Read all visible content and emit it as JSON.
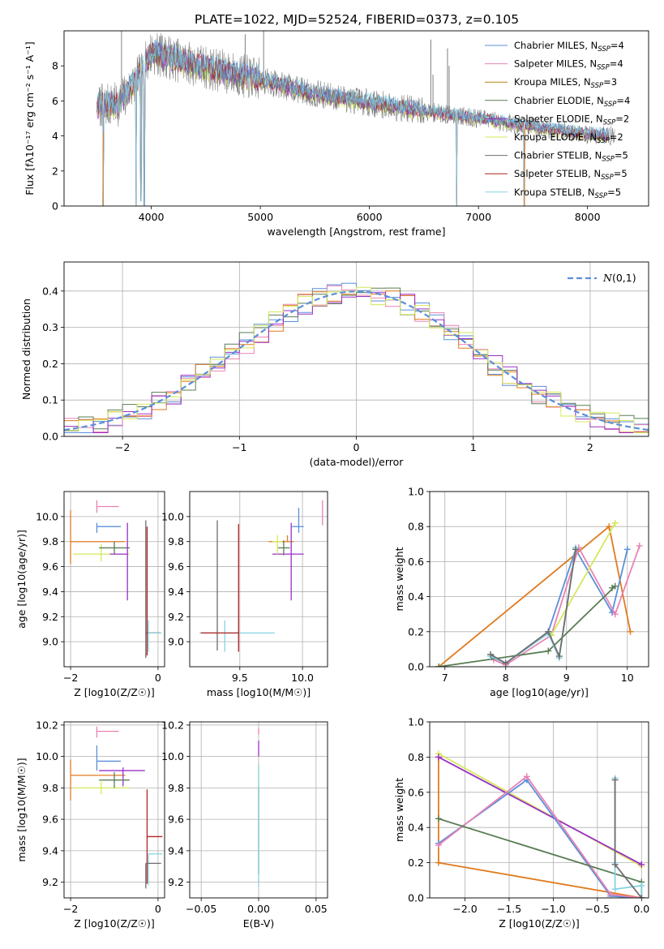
{
  "figure_title": "PLATE=1022, MJD=52524, FIBERID=0373, z=0.105",
  "colors": {
    "Chabrier MILES": "#5b8fd9",
    "Salpeter MILES": "#e882b4",
    "Kroupa MILES": "#b8860b",
    "Chabrier ELODIE": "#5a7d55",
    "Salpeter ELODIE": "#9b30c8",
    "Kroupa ELODIE": "#d4e85a",
    "Chabrier STELIB": "#6e6e6e",
    "Salpeter STELIB": "#b22222",
    "Kroupa STELIB": "#87d3e0",
    "Orange": "#e07b1f"
  },
  "chart_data": [
    {
      "id": "spectrum",
      "type": "line",
      "xlabel": "wavelength [Angstrom, rest frame]",
      "ylabel": "Flux [fλ10⁻¹⁷ erg cm⁻² s⁻¹ A⁻¹]",
      "xlim": [
        3200,
        8560
      ],
      "ylim": [
        0,
        10
      ],
      "xticks": [
        4000,
        5000,
        6000,
        7000,
        8000
      ],
      "yticks": [
        0,
        2,
        4,
        6,
        8
      ],
      "legend_position": "top-right",
      "legend": [
        {
          "name": "Chabrier MILES, N_SSP=4",
          "label_main": "Chabrier MILES, N",
          "sub": "SSP",
          "tail": "=4",
          "color_key": "Chabrier MILES"
        },
        {
          "name": "Salpeter MILES, N_SSP=4",
          "label_main": "Salpeter MILES, N",
          "sub": "SSP",
          "tail": "=4",
          "color_key": "Salpeter MILES"
        },
        {
          "name": "Kroupa MILES, N_SSP=3",
          "label_main": "Kroupa MILES, N",
          "sub": "SSP",
          "tail": "=3",
          "color_key": "Kroupa MILES"
        },
        {
          "name": "Chabrier ELODIE, N_SSP=4",
          "label_main": "Chabrier ELODIE, N",
          "sub": "SSP",
          "tail": "=4",
          "color_key": "Chabrier ELODIE"
        },
        {
          "name": "Salpeter ELODIE, N_SSP=2",
          "label_main": "Salpeter ELODIE, N",
          "sub": "SSP",
          "tail": "=2",
          "color_key": "Salpeter ELODIE"
        },
        {
          "name": "Kroupa ELODIE, N_SSP=2",
          "label_main": "Kroupa ELODIE, N",
          "sub": "SSP",
          "tail": "=2",
          "color_key": "Kroupa ELODIE"
        },
        {
          "name": "Chabrier STELIB, N_SSP=5",
          "label_main": "Chabrier STELIB, N",
          "sub": "SSP",
          "tail": "=5",
          "color_key": "Chabrier STELIB"
        },
        {
          "name": "Salpeter STELIB, N_SSP=5",
          "label_main": "Salpeter STELIB, N",
          "sub": "SSP",
          "tail": "=5",
          "color_key": "Salpeter STELIB"
        },
        {
          "name": "Kroupa STELIB, N_SSP=5",
          "label_main": "Kroupa STELIB, N",
          "sub": "SSP",
          "tail": "=5",
          "color_key": "Kroupa STELIB"
        }
      ],
      "continuum_knots": [
        [
          3500,
          5.7
        ],
        [
          3700,
          5.8
        ],
        [
          3900,
          7.5
        ],
        [
          4000,
          8.8
        ],
        [
          4200,
          8.4
        ],
        [
          4500,
          7.9
        ],
        [
          5000,
          7.2
        ],
        [
          5500,
          6.4
        ],
        [
          6000,
          5.9
        ],
        [
          6500,
          5.4
        ],
        [
          7000,
          5.0
        ],
        [
          7500,
          4.5
        ],
        [
          8000,
          4.1
        ],
        [
          8250,
          4.0
        ]
      ],
      "emission_spikes": [
        [
          3727,
          10
        ],
        [
          4861,
          9.8
        ],
        [
          5030,
          10
        ],
        [
          6563,
          9.5
        ],
        [
          6583,
          7.5
        ],
        [
          6716,
          9
        ],
        [
          6731,
          8
        ]
      ],
      "absorption_dips": [
        [
          3860,
          0
        ],
        [
          3905,
          0.3
        ],
        [
          3935,
          0
        ],
        [
          6800,
          0
        ],
        [
          7420,
          0
        ],
        [
          3560,
          0
        ]
      ]
    },
    {
      "id": "residuals",
      "type": "line",
      "xlabel": "(data-model)/error",
      "ylabel": "Normed distribution",
      "xlim": [
        -2.5,
        2.5
      ],
      "ylim": [
        0,
        0.48
      ],
      "xticks": [
        -2,
        -1,
        0,
        1,
        2
      ],
      "yticks": [
        0,
        0.1,
        0.2,
        0.3,
        0.4
      ],
      "legend_position": "top-right",
      "legend_label": "N(0,1)",
      "gaussian": {
        "mu": 0,
        "sigma": 1
      },
      "bins": 40
    },
    {
      "id": "age_vs_Z",
      "type": "scatter",
      "xlabel": "Z [log10(Z/Z☉)]",
      "ylabel": "age  [log10(age/yr)]",
      "xlim": [
        -2.15,
        0.15
      ],
      "ylim": [
        8.8,
        10.2
      ],
      "xticks": [
        -2,
        0
      ],
      "yticks": [
        9.0,
        9.2,
        9.4,
        9.6,
        9.8,
        10.0
      ],
      "points": [
        {
          "color_key": "Orange",
          "x": -2.0,
          "y": 9.8,
          "xerr": [
            0.0,
            1.25
          ],
          "yerr": [
            0.18,
            0.25
          ]
        },
        {
          "color_key": "Salpeter MILES",
          "x": -1.4,
          "y": 10.08,
          "xerr": [
            0.0,
            0.5
          ],
          "yerr": [
            0.05,
            0.05
          ]
        },
        {
          "color_key": "Chabrier MILES",
          "x": -1.4,
          "y": 9.92,
          "xerr": [
            0.0,
            0.55
          ],
          "yerr": [
            0.05,
            0.03
          ]
        },
        {
          "color_key": "Kroupa ELODIE",
          "x": -1.3,
          "y": 9.7,
          "xerr": [
            0.65,
            0.65
          ],
          "yerr": [
            0.06,
            0.08
          ]
        },
        {
          "color_key": "Chabrier ELODIE",
          "x": -1.0,
          "y": 9.75,
          "xerr": [
            0.35,
            0.35
          ],
          "yerr": [
            0.05,
            0.05
          ]
        },
        {
          "color_key": "Salpeter ELODIE",
          "x": -0.7,
          "y": 9.7,
          "xerr": [
            0.4,
            0.0
          ],
          "yerr": [
            0.37,
            0.25
          ]
        },
        {
          "color_key": "Chabrier STELIB",
          "x": -0.28,
          "y": 9.07,
          "xerr": [
            0.0,
            0.35
          ],
          "yerr": [
            0.2,
            0.9
          ]
        },
        {
          "color_key": "Salpeter STELIB",
          "x": -0.25,
          "y": 9.07,
          "xerr": [
            0.0,
            0.3
          ],
          "yerr": [
            0.18,
            0.85
          ]
        },
        {
          "color_key": "Kroupa STELIB",
          "x": -0.22,
          "y": 9.07,
          "xerr": [
            0.0,
            0.3
          ],
          "yerr": [
            0.15,
            0.1
          ]
        }
      ]
    },
    {
      "id": "age_vs_mass",
      "type": "scatter",
      "xlabel": "mass [log10(M/M☉)]",
      "ylabel": "",
      "xlim": [
        9.1,
        10.2
      ],
      "ylim": [
        8.8,
        10.2
      ],
      "xticks": [
        9.5,
        10.0
      ],
      "yticks": [
        9.0,
        9.2,
        9.4,
        9.6,
        9.8,
        10.0
      ],
      "points": [
        {
          "color_key": "Chabrier STELIB",
          "x": 9.32,
          "y": 9.07,
          "xerr": [
            0.14,
            0.0
          ],
          "yerr": [
            0.14,
            0.9
          ]
        },
        {
          "color_key": "Kroupa STELIB",
          "x": 9.38,
          "y": 9.07,
          "xerr": [
            0.2,
            0.4
          ],
          "yerr": [
            0.15,
            0.1
          ]
        },
        {
          "color_key": "Salpeter STELIB",
          "x": 9.49,
          "y": 9.07,
          "xerr": [
            0.3,
            0.0
          ],
          "yerr": [
            0.15,
            0.87
          ]
        },
        {
          "color_key": "Orange",
          "x": 9.88,
          "y": 9.8,
          "xerr": [
            0.15,
            0.05
          ],
          "yerr": [
            0.0,
            0.05
          ]
        },
        {
          "color_key": "Salpeter ELODIE",
          "x": 9.91,
          "y": 9.7,
          "xerr": [
            0.15,
            0.1
          ],
          "yerr": [
            0.37,
            0.25
          ]
        },
        {
          "color_key": "Chabrier ELODIE",
          "x": 9.85,
          "y": 9.75,
          "xerr": [
            0.05,
            0.05
          ],
          "yerr": [
            0.06,
            0.06
          ]
        },
        {
          "color_key": "Kroupa ELODIE",
          "x": 9.8,
          "y": 9.8,
          "xerr": [
            0.04,
            0.04
          ],
          "yerr": [
            0.1,
            0.05
          ]
        },
        {
          "color_key": "Chabrier MILES",
          "x": 9.97,
          "y": 9.92,
          "xerr": [
            0.06,
            0.04
          ],
          "yerr": [
            0.05,
            0.15
          ]
        },
        {
          "color_key": "Salpeter MILES",
          "x": 10.16,
          "y": 10.08,
          "xerr": [
            0.0,
            0.0
          ],
          "yerr": [
            0.15,
            0.05
          ]
        }
      ]
    },
    {
      "id": "weight_vs_age",
      "type": "line",
      "xlabel": "age  [log10(age/yr)]",
      "ylabel": "mass weight",
      "xlim": [
        6.75,
        10.35
      ],
      "ylim": [
        0,
        1.0
      ],
      "xticks": [
        7,
        8,
        9,
        10
      ],
      "yticks": [
        0,
        0.2,
        0.4,
        0.6,
        0.8,
        1.0
      ],
      "series": [
        {
          "color_key": "Orange",
          "x": [
            6.9,
            9.7,
            10.05
          ],
          "y": [
            0.0,
            0.8,
            0.2
          ]
        },
        {
          "color_key": "Chabrier MILES",
          "x": [
            7.8,
            8.0,
            8.7,
            9.15,
            9.75,
            10.0
          ],
          "y": [
            0.05,
            0.02,
            0.2,
            0.67,
            0.31,
            0.67
          ]
        },
        {
          "color_key": "Salpeter MILES",
          "x": [
            7.8,
            8.0,
            8.75,
            9.2,
            9.8,
            10.2
          ],
          "y": [
            0.04,
            0.01,
            0.18,
            0.68,
            0.3,
            0.69
          ]
        },
        {
          "color_key": "Kroupa ELODIE",
          "x": [
            8.75,
            9.8
          ],
          "y": [
            0.18,
            0.82
          ]
        },
        {
          "color_key": "Chabrier ELODIE",
          "x": [
            6.9,
            8.7,
            9.8,
            9.75
          ],
          "y": [
            0.0,
            0.09,
            0.46,
            0.45
          ]
        },
        {
          "color_key": "Kroupa STELIB",
          "x": [
            7.75,
            8.0,
            8.7,
            8.88,
            9.15
          ],
          "y": [
            0.06,
            0.02,
            0.19,
            0.05,
            0.68
          ]
        },
        {
          "color_key": "Chabrier STELIB",
          "x": [
            7.75,
            8.0,
            8.7,
            8.88,
            9.15
          ],
          "y": [
            0.07,
            0.02,
            0.2,
            0.06,
            0.67
          ]
        }
      ]
    },
    {
      "id": "mass_vs_Z",
      "type": "scatter",
      "xlabel": "Z [log10(Z/Z☉)]",
      "ylabel": "mass [log10(M/M☉)]",
      "xlim": [
        -2.15,
        0.15
      ],
      "ylim": [
        9.1,
        10.22
      ],
      "xticks": [
        -2,
        0
      ],
      "yticks": [
        9.2,
        9.4,
        9.6,
        9.8,
        10.0,
        10.2
      ],
      "points": [
        {
          "color_key": "Orange",
          "x": -2.0,
          "y": 9.88,
          "xerr": [
            0.0,
            1.25
          ],
          "yerr": [
            0.16,
            0.1
          ]
        },
        {
          "color_key": "Salpeter MILES",
          "x": -1.4,
          "y": 10.16,
          "xerr": [
            0.0,
            0.5
          ],
          "yerr": [
            0.04,
            0.03
          ]
        },
        {
          "color_key": "Chabrier MILES",
          "x": -1.4,
          "y": 9.97,
          "xerr": [
            0.0,
            0.55
          ],
          "yerr": [
            0.06,
            0.1
          ]
        },
        {
          "color_key": "Salpeter ELODIE",
          "x": -0.8,
          "y": 9.91,
          "xerr": [
            0.55,
            0.5
          ],
          "yerr": [
            0.1,
            0.02
          ]
        },
        {
          "color_key": "Kroupa ELODIE",
          "x": -1.3,
          "y": 9.8,
          "xerr": [
            0.65,
            0.65
          ],
          "yerr": [
            0.04,
            0.04
          ]
        },
        {
          "color_key": "Chabrier ELODIE",
          "x": -1.0,
          "y": 9.85,
          "xerr": [
            0.35,
            0.35
          ],
          "yerr": [
            0.05,
            0.05
          ]
        },
        {
          "color_key": "Salpeter STELIB",
          "x": -0.25,
          "y": 9.49,
          "xerr": [
            0.0,
            0.35
          ],
          "yerr": [
            0.3,
            0.3
          ]
        },
        {
          "color_key": "Kroupa STELIB",
          "x": -0.22,
          "y": 9.38,
          "xerr": [
            0.0,
            0.32
          ],
          "yerr": [
            0.2,
            0.0
          ]
        },
        {
          "color_key": "Chabrier STELIB",
          "x": -0.28,
          "y": 9.32,
          "xerr": [
            0.0,
            0.35
          ],
          "yerr": [
            0.16,
            0.0
          ]
        }
      ]
    },
    {
      "id": "mass_vs_EBV",
      "type": "scatter",
      "xlabel": "E(B-V)",
      "ylabel": "",
      "xlim": [
        -0.06,
        0.06
      ],
      "ylim": [
        9.1,
        10.22
      ],
      "xticks": [
        -0.05,
        0.0,
        0.05
      ],
      "xtick_labels": [
        "−0.05",
        "0.00",
        "0.05"
      ],
      "yticks": [
        9.2,
        9.4,
        9.6,
        9.8,
        10.0,
        10.2
      ],
      "points": [
        {
          "color_key": "Salpeter MILES",
          "x": 0.0,
          "y": 10.16,
          "yerr": [
            0.02,
            0.02
          ]
        },
        {
          "color_key": "Salpeter ELODIE",
          "x": 0.0,
          "y": 10.0,
          "yerr": [
            0.0,
            0.1
          ]
        },
        {
          "color_key": "Kroupa ELODIE",
          "x": 0.0,
          "y": 9.85,
          "yerr": [
            0.1,
            0.1
          ]
        },
        {
          "color_key": "Chabrier ELODIE",
          "x": 0.0,
          "y": 9.6,
          "yerr": [
            0.35,
            0.2
          ]
        },
        {
          "color_key": "Kroupa STELIB",
          "x": 0.0,
          "y": 9.45,
          "yerr": [
            0.28,
            0.5
          ]
        }
      ]
    },
    {
      "id": "weight_vs_Z",
      "type": "line",
      "xlabel": "Z [log10(Z/Z☉)]",
      "ylabel": "mass weight",
      "xlim": [
        -2.4,
        0.08
      ],
      "ylim": [
        0,
        1.0
      ],
      "xticks": [
        -2.0,
        -1.5,
        -1.0,
        -0.5,
        0.0
      ],
      "xtick_labels": [
        "−2.0",
        "−1.5",
        "−1.0",
        "−0.5",
        "0.0"
      ],
      "yticks": [
        0,
        0.2,
        0.4,
        0.6,
        0.8,
        1.0
      ],
      "series": [
        {
          "color_key": "Orange",
          "x": [
            -2.3,
            -2.3,
            0.0
          ],
          "y": [
            0.8,
            0.2,
            0.0
          ]
        },
        {
          "color_key": "Kroupa ELODIE",
          "x": [
            -2.3,
            0.0
          ],
          "y": [
            0.82,
            0.18
          ]
        },
        {
          "color_key": "Salpeter ELODIE",
          "x": [
            -2.3,
            0.0
          ],
          "y": [
            0.8,
            0.19
          ]
        },
        {
          "color_key": "Chabrier MILES",
          "x": [
            -2.3,
            -1.3,
            -0.35,
            0.0
          ],
          "y": [
            0.31,
            0.67,
            0.01,
            0.0
          ]
        },
        {
          "color_key": "Salpeter MILES",
          "x": [
            -2.3,
            -1.3,
            -0.35,
            0.0
          ],
          "y": [
            0.3,
            0.69,
            0.02,
            0.0
          ]
        },
        {
          "color_key": "Chabrier ELODIE",
          "x": [
            -2.3,
            0.0,
            0.0
          ],
          "y": [
            0.45,
            0.09,
            0.0
          ]
        },
        {
          "color_key": "Kroupa STELIB",
          "x": [
            -0.3,
            -0.3,
            -0.3,
            0.0,
            0.0
          ],
          "y": [
            0.68,
            0.2,
            0.05,
            0.07,
            0.0
          ]
        },
        {
          "color_key": "Chabrier STELIB",
          "x": [
            -0.3,
            -0.3,
            0.0
          ],
          "y": [
            0.67,
            0.19,
            0.0
          ]
        }
      ]
    }
  ]
}
